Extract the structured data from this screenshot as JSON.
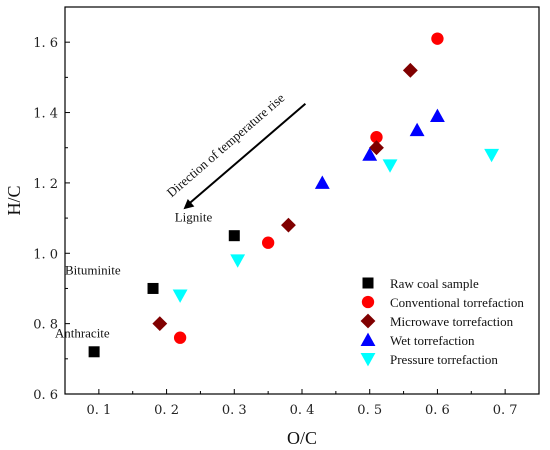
{
  "chart_data": {
    "type": "scatter",
    "xlabel": "O/C",
    "ylabel": "H/C",
    "xlim": [
      0.05,
      0.75
    ],
    "ylim": [
      0.6,
      1.7
    ],
    "xticks": [
      0.1,
      0.2,
      0.3,
      0.4,
      0.5,
      0.6,
      0.7
    ],
    "xtick_labels": [
      "0. 1",
      "0. 2",
      "0. 3",
      "0. 4",
      "0. 5",
      "0. 6",
      "0. 7"
    ],
    "yticks": [
      0.6,
      0.8,
      1.0,
      1.2,
      1.4,
      1.6
    ],
    "ytick_labels": [
      "0. 6",
      "0. 8",
      "1. 0",
      "1. 2",
      "1. 4",
      "1. 6"
    ],
    "grid": false,
    "legend_position": "bottom-right",
    "series": [
      {
        "name": "Raw coal sample",
        "marker": "square",
        "color": "#000000",
        "points": [
          [
            0.093,
            0.72
          ],
          [
            0.18,
            0.9
          ],
          [
            0.3,
            1.05
          ]
        ]
      },
      {
        "name": "Conventional torrefaction",
        "marker": "circle",
        "color": "#ff0000",
        "points": [
          [
            0.22,
            0.76
          ],
          [
            0.35,
            1.03
          ],
          [
            0.51,
            1.33
          ],
          [
            0.6,
            1.61
          ]
        ]
      },
      {
        "name": "Microwave torrefaction",
        "marker": "diamond",
        "color": "#800000",
        "points": [
          [
            0.19,
            0.8
          ],
          [
            0.38,
            1.08
          ],
          [
            0.51,
            1.3
          ],
          [
            0.56,
            1.52
          ]
        ]
      },
      {
        "name": "Wet torrefaction",
        "marker": "triangle-up",
        "color": "#0000ff",
        "points": [
          [
            0.43,
            1.2
          ],
          [
            0.5,
            1.28
          ],
          [
            0.57,
            1.35
          ],
          [
            0.6,
            1.39
          ]
        ]
      },
      {
        "name": "Pressure torrefaction",
        "marker": "triangle-down",
        "color": "#00ffff",
        "points": [
          [
            0.22,
            0.88
          ],
          [
            0.305,
            0.98
          ],
          [
            0.53,
            1.25
          ],
          [
            0.68,
            1.28
          ]
        ]
      }
    ],
    "annotations": [
      {
        "text": "Anthracite",
        "x": 0.035,
        "y": 0.76,
        "anchor": "start"
      },
      {
        "text": "Bituminite",
        "x": 0.05,
        "y": 0.94,
        "anchor": "start"
      },
      {
        "text": "Lignite",
        "x": 0.212,
        "y": 1.09,
        "anchor": "start"
      }
    ],
    "arrow": {
      "label": "Direction of temperature rise",
      "from": [
        0.405,
        1.425
      ],
      "to": [
        0.225,
        1.125
      ]
    }
  }
}
